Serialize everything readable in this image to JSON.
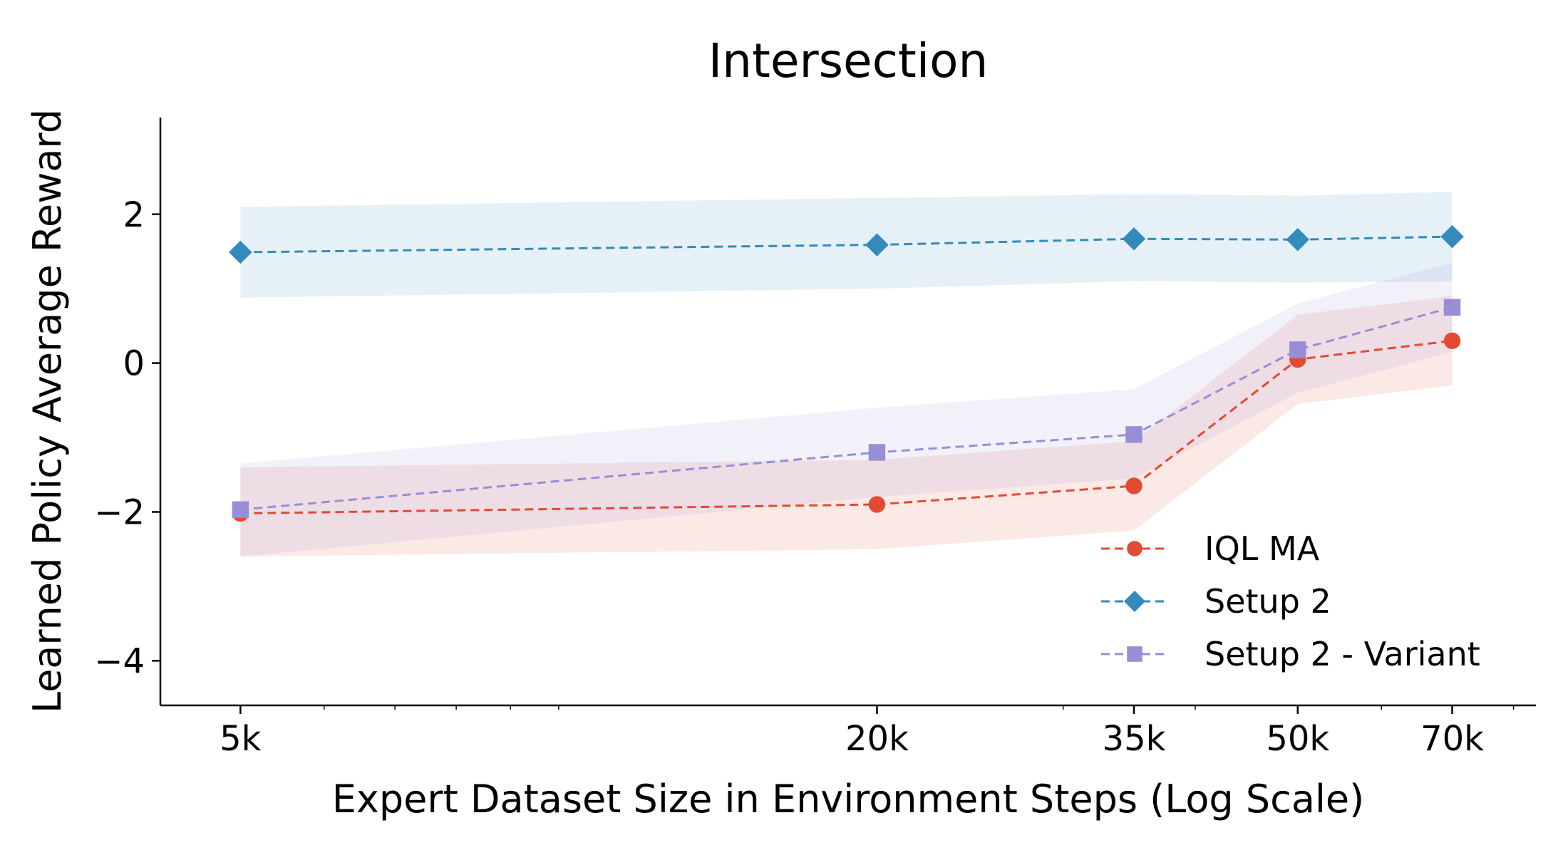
{
  "chart_data": {
    "type": "line",
    "title": "Intersection",
    "xlabel": "Expert Dataset Size in Environment Steps (Log Scale)",
    "ylabel": "Learned Policy Average Reward",
    "x_scale": "log",
    "x": [
      5000,
      20000,
      35000,
      50000,
      70000
    ],
    "x_tick_labels": [
      "5k",
      "20k",
      "35k",
      "50k",
      "70k"
    ],
    "y_ticks": [
      -4,
      -2,
      0,
      2
    ],
    "y_tick_labels": [
      "−4",
      "−2",
      "0",
      "2"
    ],
    "ylim": [
      -4.6,
      3.3
    ],
    "xlim": [
      4200,
      84000
    ],
    "grid": false,
    "legend_position": "lower-right",
    "series": [
      {
        "name": "IQL MA",
        "color": "#e24a33",
        "marker": "circle",
        "line_style": "dashed",
        "values": [
          -2.02,
          -1.9,
          -1.65,
          0.05,
          0.3
        ],
        "band_lower": [
          -2.6,
          -2.5,
          -2.25,
          -0.55,
          -0.3
        ],
        "band_upper": [
          -1.4,
          -1.3,
          -1.05,
          0.65,
          0.9
        ]
      },
      {
        "name": "Setup 2",
        "color": "#348abd",
        "marker": "diamond",
        "line_style": "dashed",
        "values": [
          1.49,
          1.59,
          1.67,
          1.66,
          1.7
        ],
        "band_lower": [
          0.88,
          1.0,
          1.1,
          1.08,
          1.1
        ],
        "band_upper": [
          2.1,
          2.22,
          2.27,
          2.25,
          2.3
        ]
      },
      {
        "name": "Setup 2 - Variant",
        "color": "#988ed5",
        "marker": "square",
        "line_style": "dashed",
        "values": [
          -1.97,
          -1.2,
          -0.96,
          0.18,
          0.75
        ],
        "band_lower": [
          -2.6,
          -1.8,
          -1.55,
          -0.4,
          0.15
        ],
        "band_upper": [
          -1.35,
          -0.6,
          -0.35,
          0.8,
          1.35
        ]
      }
    ]
  }
}
